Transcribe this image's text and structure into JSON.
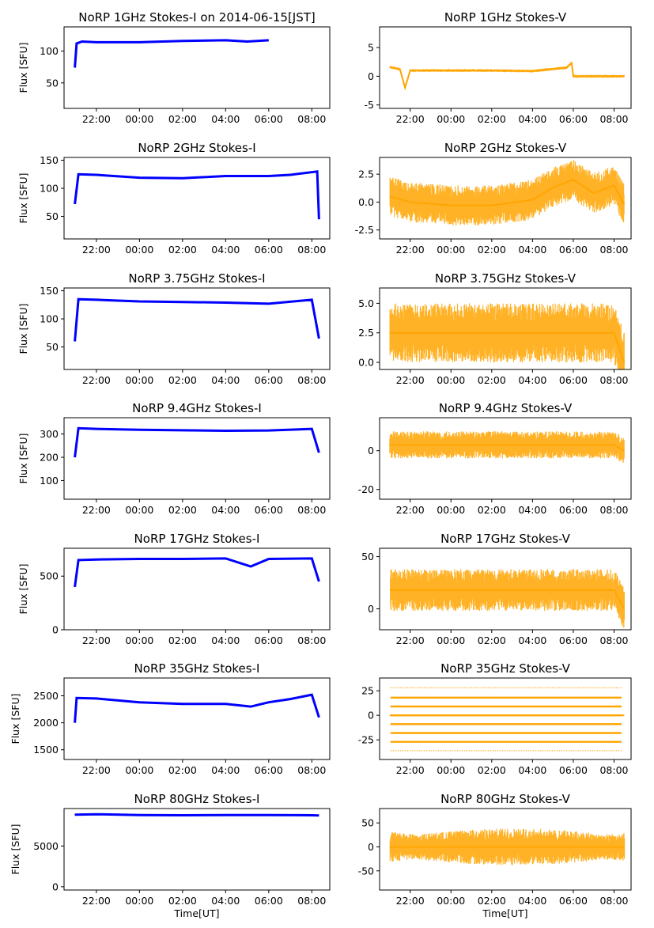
{
  "chart_data": [
    {
      "type": "scatter",
      "title": "NoRP 1GHz Stokes-I on 2014-06-15[JST]",
      "ylabel": "Flux [SFU]",
      "xlabel": "",
      "color": "#0000ff",
      "ylim": [
        10,
        138
      ],
      "yticks": [
        50,
        100
      ],
      "xticks": [
        "22:00",
        "00:00",
        "02:00",
        "04:00",
        "06:00",
        "08:00"
      ],
      "x": [
        "21:00",
        "21:05",
        "21:20",
        "22:00",
        "00:00",
        "02:00",
        "04:00",
        "05:00",
        "06:00"
      ],
      "y": [
        74,
        112,
        115,
        114,
        114,
        116,
        117,
        115,
        117
      ]
    },
    {
      "type": "scatter",
      "title": "NoRP 1GHz Stokes-V",
      "ylabel": "",
      "xlabel": "",
      "color": "#ffa500",
      "ylim": [
        -5.6,
        8.6
      ],
      "yticks": [
        -5,
        0,
        5
      ],
      "xticks": [
        "22:00",
        "00:00",
        "02:00",
        "04:00",
        "06:00",
        "08:00"
      ],
      "x": [
        "21:00",
        "21:30",
        "21:45",
        "22:00",
        "00:00",
        "02:00",
        "04:00",
        "05:40",
        "05:55",
        "06:00",
        "08:30"
      ],
      "y": [
        1.6,
        1.2,
        -2.0,
        1.0,
        1.0,
        1.0,
        0.9,
        1.5,
        2.3,
        0.0,
        0.0
      ]
    },
    {
      "type": "scatter",
      "title": "NoRP 2GHz Stokes-I",
      "ylabel": "Flux [SFU]",
      "xlabel": "",
      "color": "#0000ff",
      "ylim": [
        10,
        155
      ],
      "yticks": [
        50,
        100,
        150
      ],
      "xticks": [
        "22:00",
        "00:00",
        "02:00",
        "04:00",
        "06:00",
        "08:00"
      ],
      "x": [
        "21:00",
        "21:10",
        "22:00",
        "00:00",
        "02:00",
        "04:00",
        "06:00",
        "07:00",
        "08:15",
        "08:20"
      ],
      "y": [
        72,
        125,
        124,
        119,
        118,
        122,
        122,
        124,
        130,
        45
      ]
    },
    {
      "type": "scatter",
      "title": "NoRP 2GHz Stokes-V",
      "ylabel": "",
      "xlabel": "",
      "color": "#ffa500",
      "ylim": [
        -3.3,
        4.0
      ],
      "yticks": [
        -2.5,
        0.0,
        2.5
      ],
      "xticks": [
        "22:00",
        "00:00",
        "02:00",
        "04:00",
        "06:00",
        "08:00"
      ],
      "x": [
        "21:00",
        "22:00",
        "00:00",
        "02:00",
        "04:00",
        "05:00",
        "06:00",
        "07:00",
        "08:00",
        "08:30"
      ],
      "y": [
        0.5,
        0.0,
        -0.3,
        -0.3,
        0.2,
        1.3,
        2.0,
        0.8,
        1.5,
        -0.2
      ]
    },
    {
      "type": "scatter",
      "title": "NoRP 3.75GHz Stokes-I",
      "ylabel": "Flux [SFU]",
      "xlabel": "",
      "color": "#0000ff",
      "ylim": [
        10,
        155
      ],
      "yticks": [
        50,
        100,
        150
      ],
      "xticks": [
        "22:00",
        "00:00",
        "02:00",
        "04:00",
        "06:00",
        "08:00"
      ],
      "x": [
        "21:00",
        "21:10",
        "22:00",
        "00:00",
        "02:00",
        "04:00",
        "06:00",
        "08:00",
        "08:20"
      ],
      "y": [
        60,
        135,
        134,
        131,
        130,
        129,
        127,
        134,
        65
      ]
    },
    {
      "type": "scatter",
      "title": "NoRP 3.75GHz Stokes-V",
      "ylabel": "",
      "xlabel": "",
      "color": "#ffa500",
      "ylim": [
        -0.6,
        6.3
      ],
      "yticks": [
        0.0,
        2.5,
        5.0
      ],
      "xticks": [
        "22:00",
        "00:00",
        "02:00",
        "04:00",
        "06:00",
        "08:00"
      ],
      "x": [
        "21:00",
        "22:00",
        "00:00",
        "02:00",
        "04:00",
        "06:00",
        "08:00",
        "08:30"
      ],
      "y": [
        2.5,
        2.5,
        2.5,
        2.5,
        2.5,
        2.5,
        2.5,
        0.0
      ]
    },
    {
      "type": "scatter",
      "title": "NoRP 9.4GHz Stokes-I",
      "ylabel": "Flux [SFU]",
      "xlabel": "",
      "color": "#0000ff",
      "ylim": [
        20,
        370
      ],
      "yticks": [
        100,
        200,
        300
      ],
      "xticks": [
        "22:00",
        "00:00",
        "02:00",
        "04:00",
        "06:00",
        "08:00"
      ],
      "x": [
        "21:00",
        "21:10",
        "22:00",
        "00:00",
        "02:00",
        "04:00",
        "06:00",
        "08:00",
        "08:20"
      ],
      "y": [
        200,
        325,
        322,
        318,
        316,
        314,
        315,
        322,
        220
      ]
    },
    {
      "type": "scatter",
      "title": "NoRP 9.4GHz Stokes-V",
      "ylabel": "",
      "xlabel": "",
      "color": "#ffa500",
      "ylim": [
        -25,
        17
      ],
      "yticks": [
        -20,
        0
      ],
      "xticks": [
        "22:00",
        "00:00",
        "02:00",
        "04:00",
        "06:00",
        "08:00"
      ],
      "x": [
        "21:00",
        "22:00",
        "00:00",
        "02:00",
        "04:00",
        "06:00",
        "08:00",
        "08:30"
      ],
      "y": [
        3,
        3,
        3,
        3,
        3,
        3,
        3,
        0
      ]
    },
    {
      "type": "scatter",
      "title": "NoRP 17GHz Stokes-I",
      "ylabel": "Flux [SFU]",
      "xlabel": "",
      "color": "#0000ff",
      "ylim": [
        0,
        760
      ],
      "yticks": [
        0,
        500
      ],
      "xticks": [
        "22:00",
        "00:00",
        "02:00",
        "04:00",
        "06:00",
        "08:00"
      ],
      "x": [
        "21:00",
        "21:10",
        "22:00",
        "00:00",
        "02:00",
        "04:00",
        "05:10",
        "06:00",
        "08:00",
        "08:20"
      ],
      "y": [
        400,
        650,
        655,
        660,
        660,
        665,
        590,
        660,
        665,
        450
      ]
    },
    {
      "type": "scatter",
      "title": "NoRP 17GHz Stokes-V",
      "ylabel": "",
      "xlabel": "",
      "color": "#ffa500",
      "ylim": [
        -20,
        58
      ],
      "yticks": [
        0,
        50
      ],
      "xticks": [
        "22:00",
        "00:00",
        "02:00",
        "04:00",
        "06:00",
        "08:00"
      ],
      "x": [
        "21:00",
        "22:00",
        "00:00",
        "02:00",
        "04:00",
        "06:00",
        "08:00",
        "08:30"
      ],
      "y": [
        18,
        18,
        18,
        18,
        18,
        18,
        18,
        0
      ]
    },
    {
      "type": "scatter",
      "title": "NoRP 35GHz Stokes-I",
      "ylabel": "Flux [SFU]",
      "xlabel": "",
      "color": "#0000ff",
      "ylim": [
        1320,
        2830
      ],
      "yticks": [
        1500,
        2000,
        2500
      ],
      "xticks": [
        "22:00",
        "00:00",
        "02:00",
        "04:00",
        "06:00",
        "08:00"
      ],
      "x": [
        "21:00",
        "21:05",
        "22:00",
        "00:00",
        "02:00",
        "04:00",
        "05:10",
        "06:00",
        "07:00",
        "08:00",
        "08:20"
      ],
      "y": [
        2000,
        2460,
        2450,
        2380,
        2350,
        2350,
        2300,
        2380,
        2440,
        2520,
        2100
      ]
    },
    {
      "type": "scatter",
      "title": "NoRP 35GHz Stokes-V",
      "ylabel": "",
      "xlabel": "",
      "color": "#ffa500",
      "ylim": [
        -45,
        38
      ],
      "yticks": [
        -25,
        0,
        25
      ],
      "xticks": [
        "22:00",
        "00:00",
        "02:00",
        "04:00",
        "06:00",
        "08:00"
      ],
      "levels": [
        28,
        18,
        9,
        0,
        -9,
        -18,
        -27,
        -36
      ],
      "x": [
        "21:00",
        "08:30"
      ],
      "y": [
        0,
        0
      ]
    },
    {
      "type": "scatter",
      "title": "NoRP 80GHz Stokes-I",
      "ylabel": "Flux [SFU]",
      "xlabel": "Time[UT]",
      "color": "#0000ff",
      "ylim": [
        -400,
        9600
      ],
      "yticks": [
        0,
        5000
      ],
      "xticks": [
        "22:00",
        "00:00",
        "02:00",
        "04:00",
        "06:00",
        "08:00"
      ],
      "x": [
        "21:00",
        "22:00",
        "00:00",
        "02:00",
        "04:00",
        "06:00",
        "08:00",
        "08:20"
      ],
      "y": [
        8850,
        8900,
        8800,
        8780,
        8800,
        8800,
        8780,
        8750
      ]
    },
    {
      "type": "scatter",
      "title": "NoRP 80GHz Stokes-V",
      "ylabel": "",
      "xlabel": "Time[UT]",
      "color": "#ffa500",
      "ylim": [
        -90,
        80
      ],
      "yticks": [
        -50,
        0,
        50
      ],
      "xticks": [
        "22:00",
        "00:00",
        "02:00",
        "04:00",
        "06:00",
        "08:00"
      ],
      "x": [
        "21:00",
        "22:00",
        "00:00",
        "02:00",
        "04:00",
        "06:00",
        "08:00",
        "08:30"
      ],
      "y": [
        0,
        0,
        0,
        0,
        0,
        0,
        0,
        0
      ]
    }
  ]
}
